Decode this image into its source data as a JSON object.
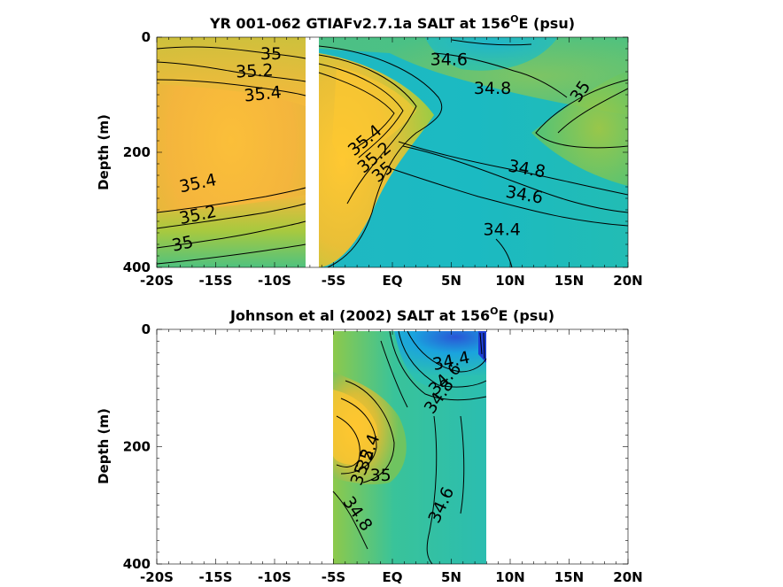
{
  "chart_data": [
    {
      "type": "heatmap",
      "title": "YR 001-062 GTIAFv2.7.1a SALT at 156",
      "title_sup": "O",
      "title_suffix": "E (psu)",
      "ylabel": "Depth (m)",
      "xlabel": "",
      "xlim": [
        -20,
        20
      ],
      "ylim": [
        0,
        400
      ],
      "y_reversed": true,
      "x_ticks": [
        -20,
        -15,
        -10,
        -5,
        0,
        5,
        10,
        15,
        20
      ],
      "x_tick_labels": [
        "-20S",
        "-15S",
        "-10S",
        "-5S",
        "EQ",
        "5N",
        "10N",
        "15N",
        "20N"
      ],
      "y_ticks": [
        0,
        200,
        400
      ],
      "y_tick_labels": [
        "0",
        "200",
        "400"
      ],
      "data_gaps": [
        [
          -7.3,
          -6.8
        ]
      ],
      "contour_labels": [
        {
          "text": "35",
          "x": -10.3,
          "y": 30,
          "angle": 0
        },
        {
          "text": "35.2",
          "x": -11.7,
          "y": 60,
          "angle": -3
        },
        {
          "text": "35.4",
          "x": -11.0,
          "y": 100,
          "angle": -6
        },
        {
          "text": "34.6",
          "x": 4.8,
          "y": 40,
          "angle": 0
        },
        {
          "text": "34.8",
          "x": 8.5,
          "y": 90,
          "angle": 0
        },
        {
          "text": "35",
          "x": 16.0,
          "y": 95,
          "angle": -55
        },
        {
          "text": "35.4",
          "x": -2.3,
          "y": 180,
          "angle": -40
        },
        {
          "text": "35.2",
          "x": -1.5,
          "y": 210,
          "angle": -40
        },
        {
          "text": "35",
          "x": -0.8,
          "y": 235,
          "angle": -40
        },
        {
          "text": "34.8",
          "x": 11.4,
          "y": 230,
          "angle": 10
        },
        {
          "text": "34.6",
          "x": 11.2,
          "y": 275,
          "angle": 10
        },
        {
          "text": "34.4",
          "x": 9.3,
          "y": 335,
          "angle": 0
        },
        {
          "text": "35.4",
          "x": -16.5,
          "y": 255,
          "angle": -12
        },
        {
          "text": "35.2",
          "x": -16.5,
          "y": 310,
          "angle": -12
        },
        {
          "text": "35",
          "x": -17.8,
          "y": 360,
          "angle": -12
        }
      ],
      "colorscale": [
        "#3a5fd0",
        "#12a8d8",
        "#2cc1a8",
        "#8dcc4a",
        "#cdbd3a",
        "#f2b63e",
        "#ffcc2e"
      ],
      "color_range": [
        34.2,
        35.6
      ]
    },
    {
      "type": "heatmap",
      "title": "Johnson et al (2002) SALT at 156",
      "title_sup": "O",
      "title_suffix": "E (psu)",
      "ylabel": "Depth (m)",
      "xlabel": "",
      "xlim": [
        -20,
        20
      ],
      "ylim": [
        0,
        400
      ],
      "y_reversed": true,
      "x_ticks": [
        -20,
        -15,
        -10,
        -5,
        0,
        5,
        10,
        15,
        20
      ],
      "x_tick_labels": [
        "-20S",
        "-15S",
        "-10S",
        "-5S",
        "EQ",
        "5N",
        "10N",
        "15N",
        "20N"
      ],
      "y_ticks": [
        0,
        200,
        400
      ],
      "y_tick_labels": [
        "0",
        "200",
        "400"
      ],
      "data_extent_x": [
        -5,
        8
      ],
      "contour_labels": [
        {
          "text": "34.4",
          "x": 5.0,
          "y": 55,
          "angle": -12
        },
        {
          "text": "34.6",
          "x": 4.5,
          "y": 85,
          "angle": -45
        },
        {
          "text": "34.8",
          "x": 4.0,
          "y": 115,
          "angle": -55
        },
        {
          "text": "35.4",
          "x": -2.0,
          "y": 210,
          "angle": -70
        },
        {
          "text": "35.2",
          "x": -2.5,
          "y": 235,
          "angle": -70
        },
        {
          "text": "35",
          "x": -1.0,
          "y": 250,
          "angle": 0
        },
        {
          "text": "34.8",
          "x": -3.0,
          "y": 315,
          "angle": 55
        },
        {
          "text": "34.6",
          "x": 4.2,
          "y": 300,
          "angle": -65
        }
      ],
      "colorscale": [
        "#3a5fd0",
        "#12a8d8",
        "#2cc1a8",
        "#8dcc4a",
        "#cdbd3a",
        "#f2b63e",
        "#ffcc2e"
      ],
      "color_range": [
        34.2,
        35.6
      ]
    }
  ]
}
